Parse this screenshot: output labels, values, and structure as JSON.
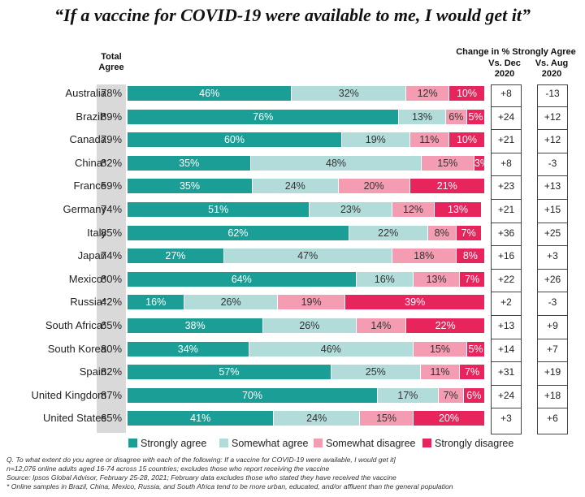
{
  "chart_data": {
    "type": "bar",
    "stacked": true,
    "orientation": "horizontal",
    "title": "“If a vaccine for COVID-19 were available to me, I would get it”",
    "total_header": "Total Agree",
    "change_header": "Change in % Strongly Agree",
    "vs_dec_header": "Vs. Dec 2020",
    "vs_aug_header": "Vs. Aug 2020",
    "categories": [
      "Australia",
      "Brazil*",
      "Canada",
      "China*",
      "France",
      "Germany",
      "Italy",
      "Japan",
      "Mexico*",
      "Russia*",
      "South Africa*",
      "South Korea",
      "Spain",
      "United Kingdom",
      "United States"
    ],
    "total_agree": [
      "78%",
      "89%",
      "79%",
      "82%",
      "59%",
      "74%",
      "85%",
      "74%",
      "80%",
      "42%",
      "65%",
      "80%",
      "82%",
      "87%",
      "65%"
    ],
    "series": [
      {
        "name": "Strongly agree",
        "color": "#1a9e95",
        "values": [
          46,
          76,
          60,
          35,
          35,
          51,
          62,
          27,
          64,
          16,
          38,
          34,
          57,
          70,
          41
        ]
      },
      {
        "name": "Somewhat agree",
        "color": "#b1dcd9",
        "values": [
          32,
          13,
          19,
          48,
          24,
          23,
          22,
          47,
          16,
          26,
          26,
          46,
          25,
          17,
          24
        ]
      },
      {
        "name": "Somewhat disagree",
        "color": "#f39cb2",
        "values": [
          12,
          6,
          11,
          15,
          20,
          12,
          8,
          18,
          13,
          19,
          14,
          15,
          11,
          7,
          15
        ]
      },
      {
        "name": "Strongly disagree",
        "color": "#e8245c",
        "values": [
          10,
          5,
          10,
          3,
          21,
          13,
          7,
          8,
          7,
          39,
          22,
          5,
          7,
          6,
          20
        ]
      }
    ],
    "change_vs_dec_2020": [
      "+8",
      "+24",
      "+21",
      "+8",
      "+23",
      "+21",
      "+36",
      "+16",
      "+22",
      "+2",
      "+13",
      "+14",
      "+31",
      "+24",
      "+3"
    ],
    "change_vs_aug_2020": [
      "-13",
      "+12",
      "+12",
      "-3",
      "+13",
      "+15",
      "+25",
      "+3",
      "+26",
      "-3",
      "+9",
      "+7",
      "+19",
      "+18",
      "+6"
    ],
    "xlim": [
      0,
      100
    ],
    "legend_position": "bottom"
  },
  "footnotes": [
    "Q. To what extent do you agree or disagree with each of the following: If a vaccine for COVID-19 were available, I would get it]",
    "n=12,076 online adults aged 16-74 across 15 countries; excludes those who report receiving the vaccine",
    "Source: Ipsos Global Advisor, February 25-28, 2021; February data excludes those who stated they have received the vaccine",
    "* Online samples in Brazil, China, Mexico, Russia, and South Africa tend to be more urban, educated, and/or affluent than the general population"
  ]
}
